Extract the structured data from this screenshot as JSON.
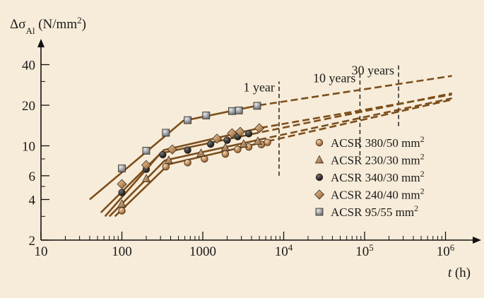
{
  "chart_data": {
    "type": "line",
    "xscale": "log",
    "yscale": "log",
    "xlim": [
      10,
      2000000
    ],
    "ylim": [
      2,
      50
    ],
    "ylabel_main": "Δσ",
    "ylabel_sub": "Al",
    "ylabel_unit": " (N/mm",
    "ylabel_sup": "2",
    "ylabel_close": ")",
    "xlabel_var": "t",
    "xlabel_unit": " (h)",
    "x_ticks": [
      {
        "value": 10,
        "label": "10",
        "sup": ""
      },
      {
        "value": 100,
        "label": "100",
        "sup": ""
      },
      {
        "value": 1000,
        "label": "1000",
        "sup": ""
      },
      {
        "value": 10000,
        "label": "10",
        "sup": "4"
      },
      {
        "value": 100000,
        "label": "10",
        "sup": "5"
      },
      {
        "value": 1000000,
        "label": "10",
        "sup": "6"
      }
    ],
    "y_ticks": [
      {
        "value": 2,
        "label": "2"
      },
      {
        "value": 4,
        "label": "4"
      },
      {
        "value": 6,
        "label": "6"
      },
      {
        "value": 10,
        "label": "10"
      },
      {
        "value": 20,
        "label": "20"
      },
      {
        "value": 40,
        "label": "40"
      }
    ],
    "y_minor_ticks": [
      3,
      5,
      8,
      30
    ],
    "time_markers": [
      {
        "label": "1 year",
        "x": 8760,
        "y_from": 6,
        "y_to": 30
      },
      {
        "label": "10 years",
        "x": 87600,
        "y_from": 8.5,
        "y_to": 35
      },
      {
        "label": "30 years",
        "x": 262800,
        "y_from": 14,
        "y_to": 40
      }
    ],
    "series": [
      {
        "name": "ACSR 380/50 mm",
        "name_sup": "2",
        "marker": "circle",
        "fill": "#c98a4c",
        "measured": [
          [
            100,
            3.3
          ],
          [
            350,
            7.0
          ],
          [
            650,
            7.5
          ],
          [
            1050,
            8.0
          ],
          [
            1900,
            8.7
          ],
          [
            2700,
            9.4
          ],
          [
            3700,
            9.8
          ],
          [
            5300,
            10.2
          ],
          [
            6300,
            10.6
          ]
        ],
        "fit_solid": [
          [
            82,
            3.0
          ],
          [
            380,
            7.3
          ],
          [
            6300,
            10.8
          ]
        ],
        "fit_dashed": [
          [
            6300,
            10.8
          ],
          [
            1200000,
            22.0
          ]
        ]
      },
      {
        "name": "ACSR 230/30 mm",
        "name_sup": "2",
        "marker": "triangle",
        "fill": "#b98a60",
        "measured": [
          [
            100,
            3.7
          ],
          [
            200,
            5.7
          ],
          [
            380,
            7.8
          ],
          [
            950,
            8.8
          ],
          [
            1900,
            9.7
          ],
          [
            3200,
            10.3
          ],
          [
            4800,
            10.8
          ]
        ],
        "fit_solid": [
          [
            70,
            3.0
          ],
          [
            340,
            7.8
          ],
          [
            5000,
            11.1
          ]
        ],
        "fit_dashed": [
          [
            5000,
            11.1
          ],
          [
            1200000,
            22.5
          ]
        ]
      },
      {
        "name": "ACSR 340/30 mm",
        "name_sup": "2",
        "marker": "filled-circle",
        "fill": "#1e1e1e",
        "measured": [
          [
            100,
            4.5
          ],
          [
            200,
            6.7
          ],
          [
            320,
            8.6
          ],
          [
            650,
            9.3
          ],
          [
            1250,
            10.3
          ],
          [
            2000,
            11.0
          ],
          [
            2700,
            11.7
          ],
          [
            3700,
            12.3
          ]
        ],
        "fit_solid": [
          [
            62,
            3.0
          ],
          [
            300,
            8.8
          ],
          [
            4000,
            12.2
          ]
        ],
        "fit_dashed": [
          [
            4000,
            12.2
          ],
          [
            1200000,
            24.5
          ]
        ]
      },
      {
        "name": "ACSR 240/40 mm",
        "name_sup": "2",
        "marker": "diamond",
        "fill": "#b8834d",
        "measured": [
          [
            100,
            5.2
          ],
          [
            200,
            7.2
          ],
          [
            420,
            9.4
          ],
          [
            1500,
            11.3
          ],
          [
            2300,
            12.4
          ],
          [
            2900,
            12.7
          ],
          [
            5000,
            13.5
          ]
        ],
        "fit_solid": [
          [
            55,
            3.2
          ],
          [
            330,
            9.3
          ],
          [
            5200,
            13.6
          ]
        ],
        "fit_dashed": [
          [
            5200,
            13.6
          ],
          [
            1200000,
            24.0
          ]
        ]
      },
      {
        "name": "ACSR 95/55 mm",
        "name_sup": "2",
        "marker": "square",
        "fill": "#aaaeb3",
        "measured": [
          [
            100,
            6.8
          ],
          [
            200,
            9.2
          ],
          [
            350,
            12.5
          ],
          [
            650,
            15.5
          ],
          [
            1100,
            16.8
          ],
          [
            2300,
            18.1
          ],
          [
            2800,
            18.3
          ],
          [
            4700,
            19.8
          ]
        ],
        "fit_solid": [
          [
            40,
            4.0
          ],
          [
            570,
            15.3
          ],
          [
            5000,
            20.0
          ]
        ],
        "fit_dashed": [
          [
            5000,
            20.0
          ],
          [
            1200000,
            33.0
          ]
        ]
      }
    ],
    "colors": {
      "background": "#f7ecd9",
      "line": "#7c4e1c",
      "axis": "#111111"
    }
  }
}
